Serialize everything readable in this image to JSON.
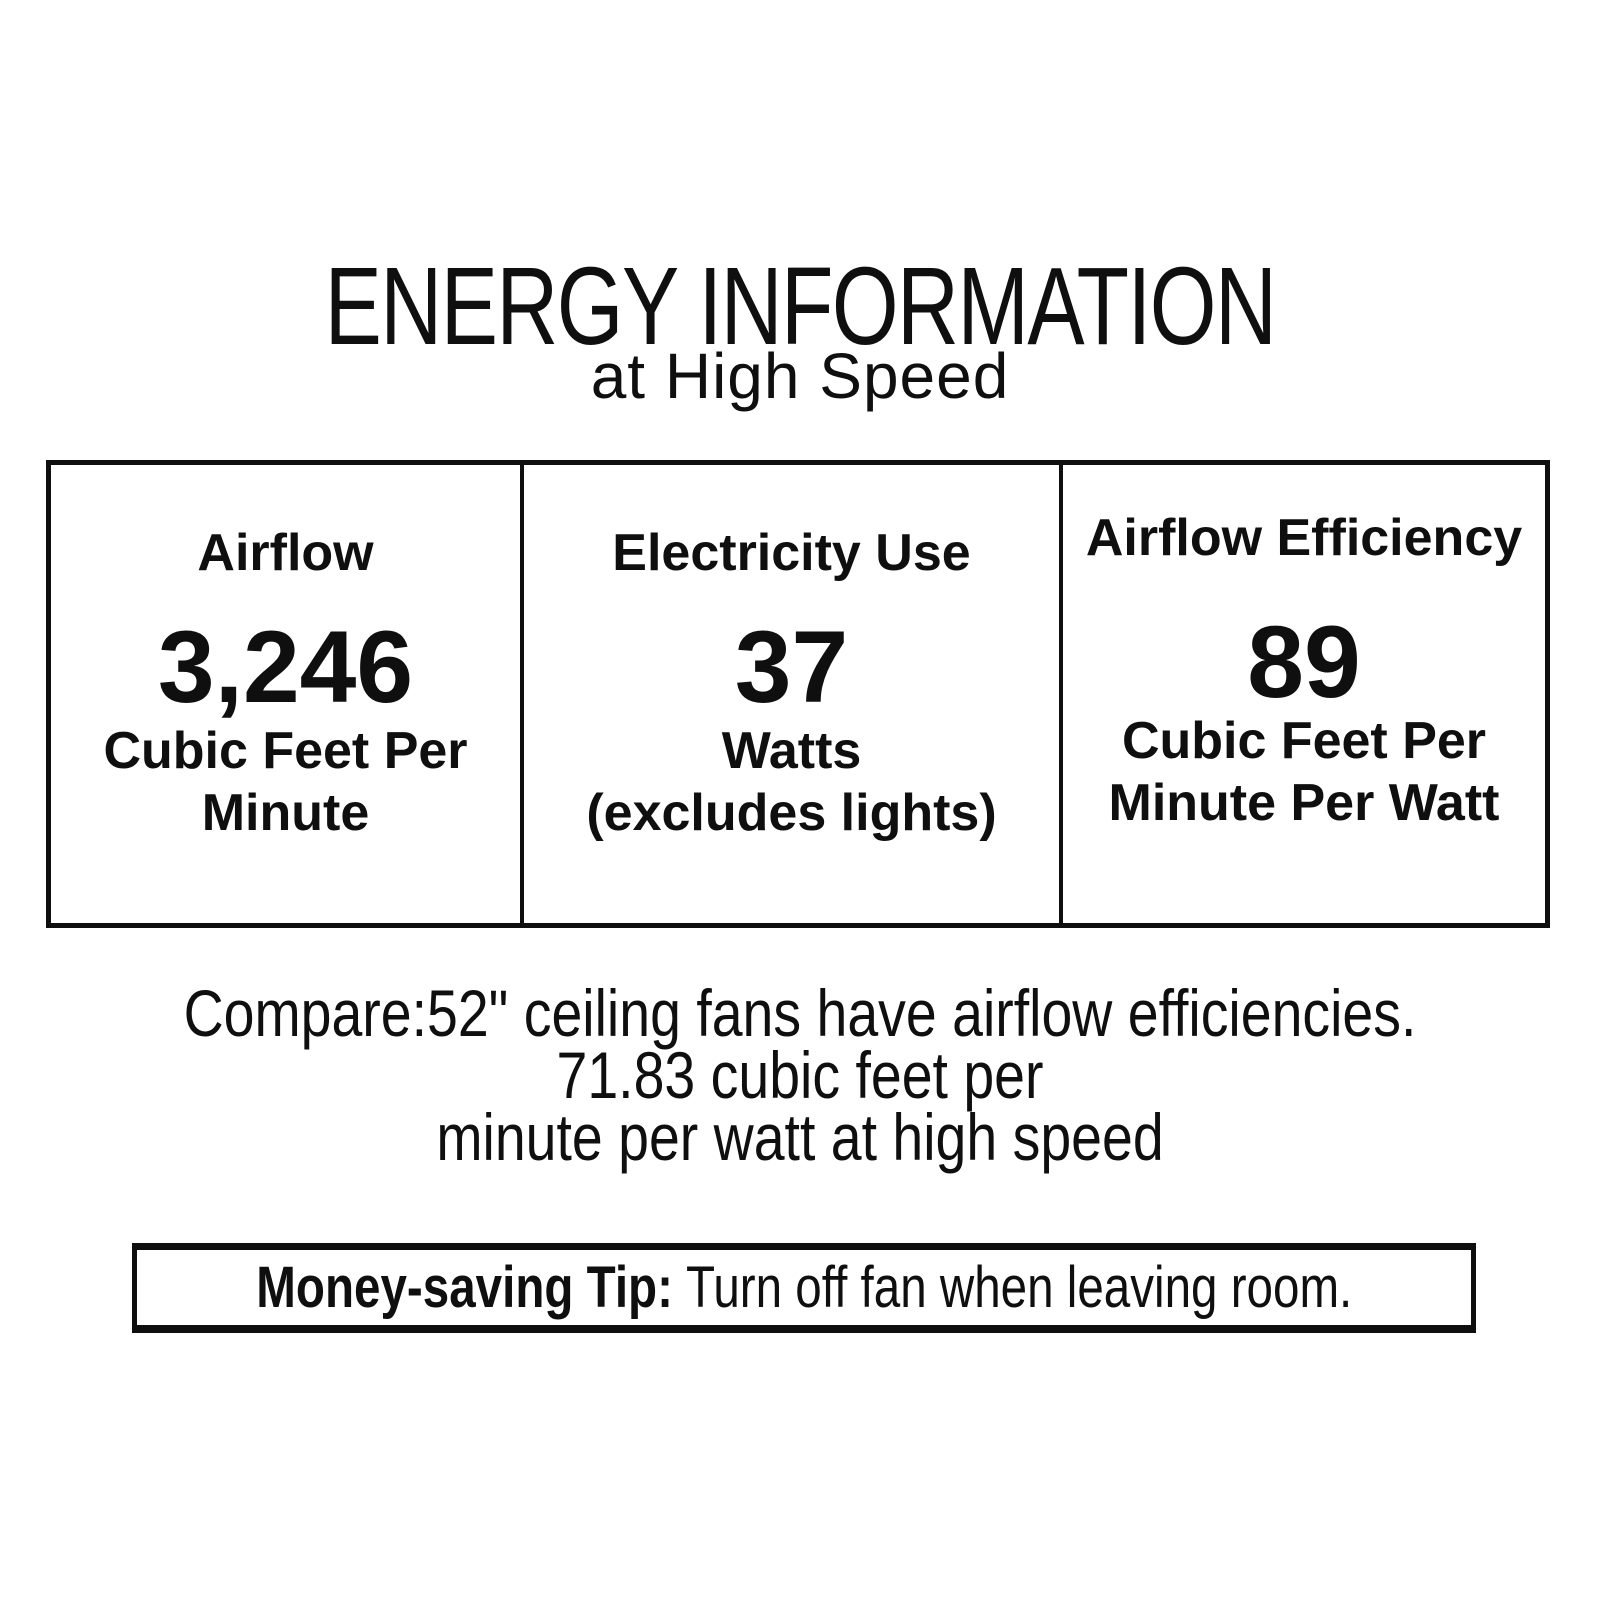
{
  "title": "ENERGY INFORMATION",
  "subtitle": "at High Speed",
  "table": {
    "columns": [
      {
        "label": "Airflow",
        "value": "3,246",
        "unit_lines": [
          "Cubic Feet Per",
          "Minute"
        ]
      },
      {
        "label": "Electricity Use",
        "value": "37",
        "unit_lines": [
          "Watts",
          "(excludes lights)"
        ]
      },
      {
        "label": "Airflow Efficiency",
        "value": "89",
        "unit_lines": [
          "Cubic Feet Per",
          "Minute Per Watt"
        ]
      }
    ]
  },
  "compare": {
    "lines": [
      "Compare:52\" ceiling fans have airflow efficiencies.",
      "71.83 cubic feet per",
      "minute per watt at high speed"
    ]
  },
  "tip": {
    "label": "Money-saving Tip:",
    "text": "Turn off fan when leaving room."
  },
  "colors": {
    "ink": "#0f0f0f",
    "background": "#ffffff"
  }
}
